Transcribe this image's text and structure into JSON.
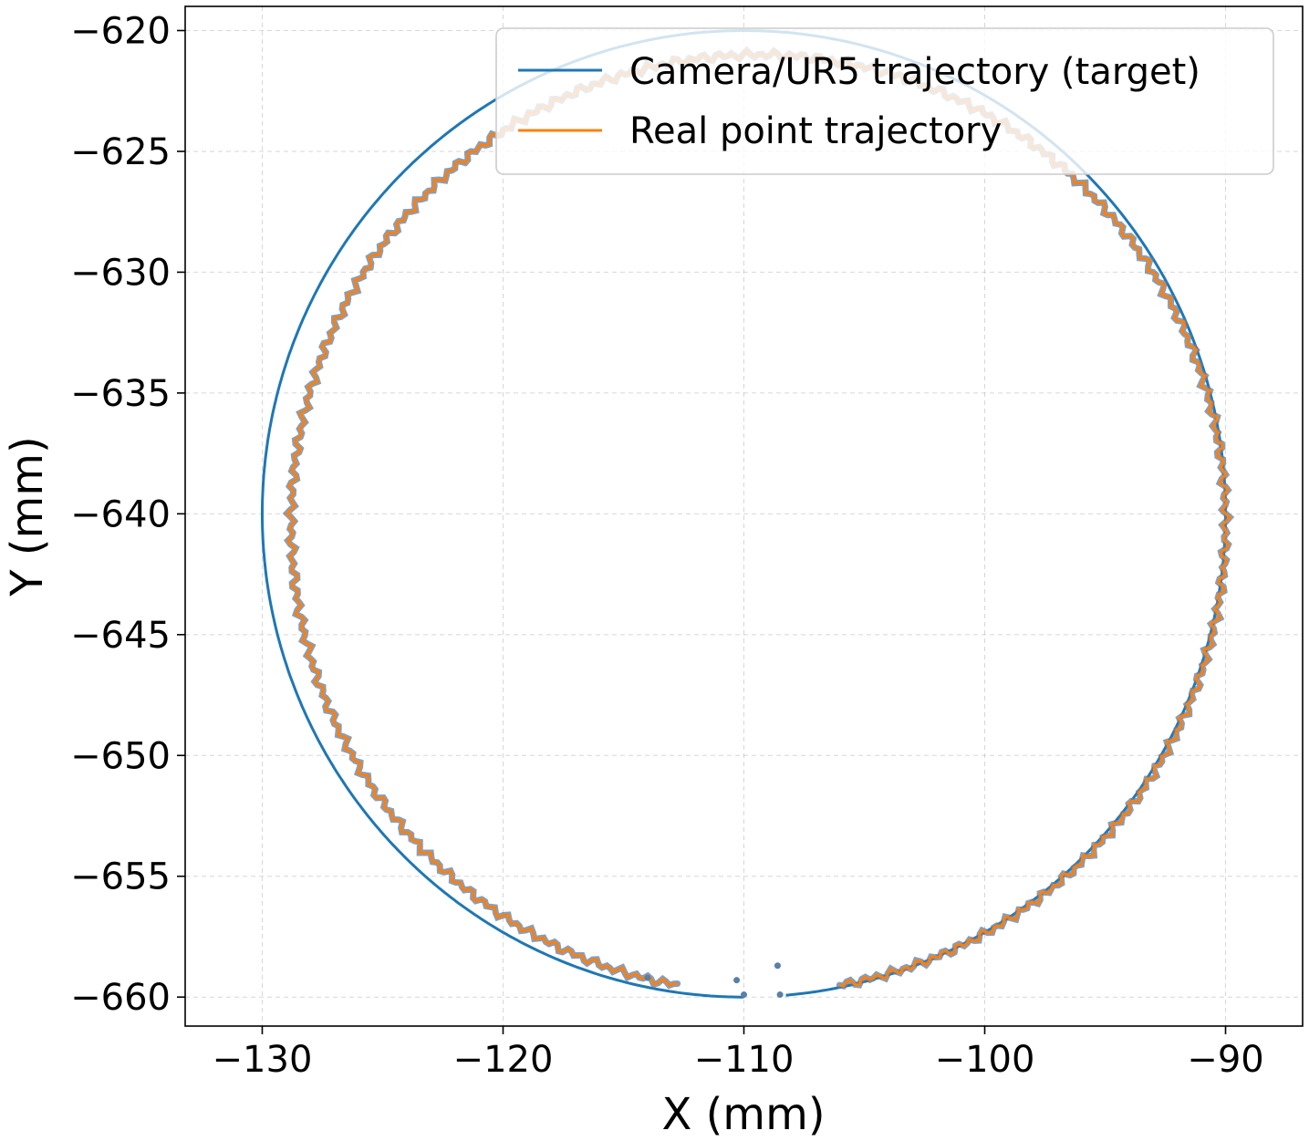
{
  "chart_data": {
    "type": "line",
    "title": "",
    "xlabel": "X (mm)",
    "ylabel": "Y (mm)",
    "xlim": [
      -133.2,
      -86.8
    ],
    "ylim": [
      -661.2,
      -619.0
    ],
    "xticks": [
      -130,
      -120,
      -110,
      -100,
      -90
    ],
    "yticks": [
      -620,
      -625,
      -630,
      -635,
      -640,
      -645,
      -650,
      -655,
      -660
    ],
    "xtick_labels": [
      "−130",
      "−120",
      "−110",
      "−100",
      "−90"
    ],
    "ytick_labels": [
      "−620",
      "−625",
      "−630",
      "−635",
      "−640",
      "−645",
      "−650",
      "−655",
      "−660"
    ],
    "grid": true,
    "legend_position": "top-right",
    "series": [
      {
        "name": "Camera/UR5 trajectory (target)",
        "color": "#1f77b4",
        "shape": "circle",
        "center": [
          -110,
          -640
        ],
        "radius": 20,
        "start_angle_deg": 275,
        "end_angle_deg": 630
      },
      {
        "name": "Real point trajectory",
        "color": "#ff7f0e",
        "shape": "circle",
        "center": [
          -109.4,
          -640.4
        ],
        "radius": 19.4,
        "start_angle_deg": 280,
        "end_angle_deg": 620,
        "noisy": true
      }
    ],
    "annotations": {
      "gap_points": [
        {
          "x": -110.0,
          "y": -659.9
        },
        {
          "x": -108.5,
          "y": -659.9
        },
        {
          "x": -110.3,
          "y": -659.3
        },
        {
          "x": -108.6,
          "y": -658.7
        },
        {
          "x": -114.0,
          "y": -659.2
        }
      ]
    }
  }
}
